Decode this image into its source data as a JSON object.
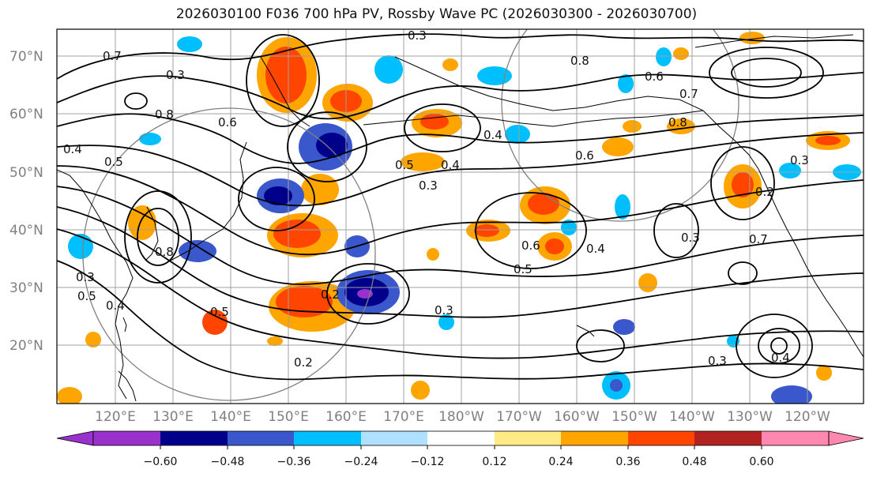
{
  "title": "2026030100 F036 700 hPa PV, Rossby Wave PC (2026030300 - 2026030700)",
  "map": {
    "lat_labels": [
      "70°N",
      "60°N",
      "50°N",
      "40°N",
      "30°N",
      "20°N"
    ],
    "lon_labels": [
      "120°E",
      "130°E",
      "140°E",
      "150°E",
      "160°E",
      "170°E",
      "180°W",
      "170°W",
      "160°W",
      "150°W",
      "140°W",
      "130°W",
      "120°W"
    ],
    "contour_labels": [
      "0.3",
      "0.7",
      "0.8",
      "0.6",
      "0.3",
      "0.7",
      "0.8",
      "0.6",
      "0.4",
      "0.5",
      "0.8",
      "0.4",
      "0.6",
      "0.3",
      "0.5",
      "0.4",
      "0.3",
      "0.6",
      "0.4",
      "0.5",
      "0.2",
      "0.3",
      "0.2",
      "0.5",
      "0.3",
      "0.3",
      "0.2",
      "0.4",
      "0.7",
      "0.3",
      "0.5",
      "0.4",
      "0.8"
    ]
  },
  "colorbar": {
    "colors": [
      "#9932CC",
      "#00008B",
      "#3A57CC",
      "#00BFFF",
      "#B0E0FF",
      "#FFFFFF",
      "#FFEA85",
      "#FFA500",
      "#FF4500",
      "#B22222",
      "#FF88B0"
    ],
    "tick_labels": [
      "−0.60",
      "−0.48",
      "−0.36",
      "−0.24",
      "−0.12",
      "0.12",
      "0.24",
      "0.36",
      "0.48",
      "0.60"
    ]
  },
  "colors": {
    "contour": "#000000",
    "grid": "#A0A0A0",
    "coast": "#000000",
    "axis_label": "#808080"
  }
}
